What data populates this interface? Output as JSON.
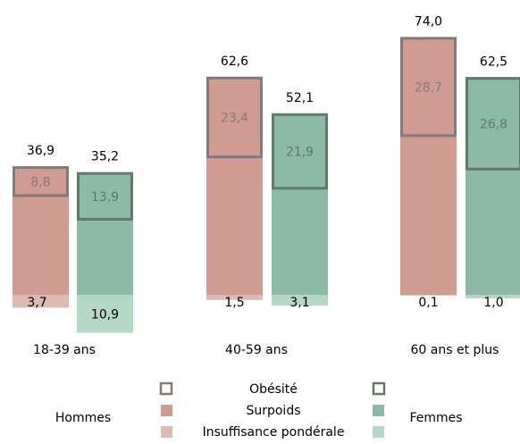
{
  "colors": {
    "hommes_surpoids": "#d09b91",
    "hommes_obesite_border": "#85797a",
    "hommes_insuffisance": "#dcbcb2",
    "femmes_surpoids": "#8cbaa6",
    "femmes_obesite_border": "#617a6b",
    "femmes_insuffisance": "#b4d7c6",
    "inside_text_hommes": "#8c7775",
    "inside_text_femmes": "#5a7a6b"
  },
  "chart_data": {
    "type": "bar",
    "stacked": true,
    "categories": [
      "18-39 ans",
      "40-59 ans",
      "60 ans et plus"
    ],
    "series_groups": [
      {
        "name": "Hommes",
        "total": [
          "36,9",
          "62,6",
          "74,0"
        ],
        "surpoids_total": [
          36.9,
          62.6,
          74.0
        ],
        "obesite": [
          8.8,
          23.4,
          28.7
        ],
        "obesite_label": [
          "8,8",
          "23,4",
          "28,7"
        ],
        "insuffisance_ponderale": [
          3.7,
          1.5,
          0.1
        ],
        "insuffisance_label": [
          "3,7",
          "1,5",
          "0,1"
        ]
      },
      {
        "name": "Femmes",
        "total": [
          "35,2",
          "52,1",
          "62,5"
        ],
        "surpoids_total": [
          35.2,
          52.1,
          62.5
        ],
        "obesite": [
          13.9,
          21.9,
          26.8
        ],
        "obesite_label": [
          "13,9",
          "21,9",
          "26,8"
        ],
        "insuffisance_ponderale": [
          10.9,
          3.1,
          1.0
        ],
        "insuffisance_label": [
          "10,9",
          "3,1",
          "1,0"
        ]
      }
    ],
    "legend": {
      "placement": "bottom-center",
      "entries": [
        "Obésité",
        "Surpoids",
        "Insuffisance pondérale"
      ],
      "group_left": "Hommes",
      "group_right": "Femmes"
    },
    "grid": false
  }
}
